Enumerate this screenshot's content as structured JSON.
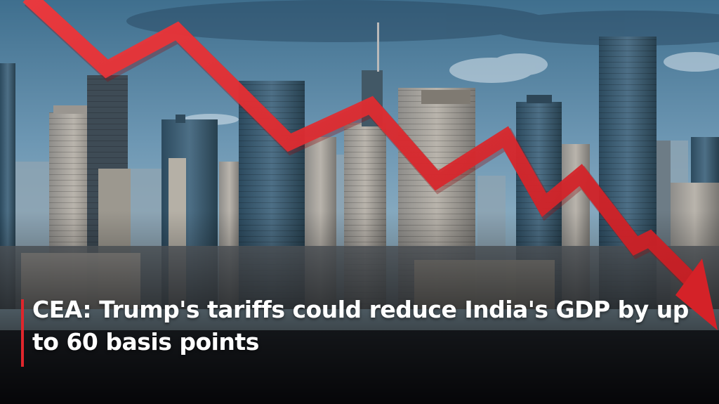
{
  "headline": {
    "text": "CEA: Trump's tariffs could reduce India's GDP by up to 60 basis points",
    "accent_color": "#e0262c"
  },
  "scene": {
    "description_icon": "city-skyline-image",
    "arrow_color": "#e8262c",
    "arrow_icon": "downtrend-arrow-icon",
    "sky_color": "#5f88a6"
  }
}
